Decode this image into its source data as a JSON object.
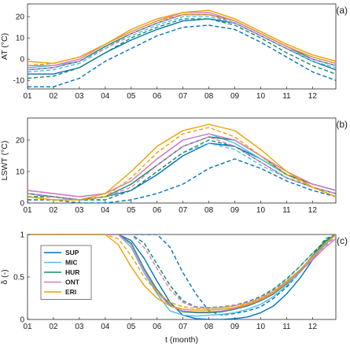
{
  "chart_data": [
    {
      "type": "line",
      "panel_tag": "(a)",
      "ylabel": "AT (°C)",
      "xlabel": "",
      "x_ticks": [
        "01",
        "02",
        "03",
        "04",
        "05",
        "06",
        "07",
        "08",
        "09",
        "10",
        "11",
        "12"
      ],
      "xlim": [
        1,
        12.9
      ],
      "ylim": [
        -14,
        26
      ],
      "y_ticks": [
        -10,
        0,
        10,
        20
      ],
      "grid": false,
      "x": [
        1,
        2,
        3,
        4,
        5,
        6,
        7,
        8,
        9,
        10,
        11,
        12,
        12.9
      ],
      "series": [
        {
          "name": "SUP",
          "style": "solid",
          "color": "#0072BD",
          "values": [
            -7,
            -7,
            -4,
            3,
            9,
            14,
            18,
            19,
            17,
            11,
            5,
            -1,
            -5
          ]
        },
        {
          "name": "SUP",
          "style": "dashed",
          "color": "#0072BD",
          "values": [
            -13,
            -13,
            -9,
            -1,
            5,
            11,
            15,
            16,
            14,
            8,
            1,
            -6,
            -10
          ]
        },
        {
          "name": "MIC",
          "style": "solid",
          "color": "#4DBEEE",
          "values": [
            -4,
            -3,
            -1,
            6,
            12,
            17,
            21,
            21,
            18,
            12,
            6,
            0,
            -3
          ]
        },
        {
          "name": "MIC",
          "style": "dashed",
          "color": "#4DBEEE",
          "values": [
            -6,
            -5,
            -2,
            5,
            11,
            16,
            20,
            20,
            17,
            11,
            5,
            -1,
            -4
          ]
        },
        {
          "name": "HUR",
          "style": "solid",
          "color": "#1B8E5A",
          "values": [
            -5,
            -4,
            -1,
            6,
            12,
            17,
            21,
            21,
            18,
            12,
            6,
            0,
            -3
          ]
        },
        {
          "name": "HUR",
          "style": "dashed",
          "color": "#1B8E5A",
          "values": [
            -9,
            -8,
            -4,
            3,
            10,
            15,
            19,
            19,
            16,
            10,
            3,
            -3,
            -7
          ]
        },
        {
          "name": "ONT",
          "style": "solid",
          "color": "#D97AC4",
          "values": [
            -3,
            -3,
            0,
            7,
            13,
            18,
            22,
            22,
            18,
            12,
            6,
            1,
            -2
          ]
        },
        {
          "name": "ONT",
          "style": "dashed",
          "color": "#D97AC4",
          "values": [
            -5,
            -4,
            -1,
            5,
            12,
            17,
            21,
            21,
            17,
            11,
            5,
            0,
            -3
          ]
        },
        {
          "name": "ERI",
          "style": "solid",
          "color": "#EDA000",
          "values": [
            -1,
            -2,
            1,
            7,
            14,
            19,
            22,
            23,
            19,
            13,
            7,
            2,
            -1
          ]
        },
        {
          "name": "ERI",
          "style": "dashed",
          "color": "#EDA000",
          "values": [
            -3,
            -2,
            1,
            7,
            13,
            18,
            21,
            21,
            18,
            12,
            6,
            1,
            -2
          ]
        }
      ]
    },
    {
      "type": "line",
      "panel_tag": "(b)",
      "ylabel": "LSWT (°C)",
      "xlabel": "",
      "x_ticks": [
        "01",
        "02",
        "03",
        "04",
        "05",
        "06",
        "07",
        "08",
        "09",
        "10",
        "11",
        "12"
      ],
      "xlim": [
        1,
        12.9
      ],
      "ylim": [
        0,
        27
      ],
      "y_ticks": [
        0,
        10,
        20
      ],
      "grid": false,
      "x": [
        1,
        2,
        3,
        4,
        5,
        6,
        7,
        8,
        9,
        10,
        11,
        12,
        12.9
      ],
      "series": [
        {
          "name": "SUP",
          "style": "solid",
          "color": "#0072BD",
          "values": [
            3,
            2,
            1,
            2,
            4,
            9,
            15,
            19,
            18,
            14,
            9,
            6,
            4
          ]
        },
        {
          "name": "SUP",
          "style": "dashed",
          "color": "#0072BD",
          "values": [
            1,
            1,
            0,
            0,
            1,
            3,
            6,
            11,
            14,
            11,
            7,
            4,
            2
          ]
        },
        {
          "name": "MIC",
          "style": "solid",
          "color": "#4DBEEE",
          "values": [
            4,
            3,
            2,
            3,
            7,
            14,
            20,
            22,
            19,
            14,
            9,
            6,
            4
          ]
        },
        {
          "name": "MIC",
          "style": "dashed",
          "color": "#4DBEEE",
          "values": [
            2,
            2,
            1,
            1,
            4,
            10,
            16,
            19,
            17,
            12,
            8,
            5,
            3
          ]
        },
        {
          "name": "HUR",
          "style": "solid",
          "color": "#1B8E5A",
          "values": [
            3,
            2,
            1,
            2,
            6,
            12,
            18,
            21,
            20,
            15,
            9,
            6,
            4
          ]
        },
        {
          "name": "HUR",
          "style": "dashed",
          "color": "#1B8E5A",
          "values": [
            2,
            2,
            1,
            1,
            4,
            10,
            16,
            20,
            18,
            13,
            8,
            5,
            3
          ]
        },
        {
          "name": "ONT",
          "style": "solid",
          "color": "#D97AC4",
          "values": [
            4,
            3,
            2,
            3,
            7,
            14,
            20,
            22,
            20,
            15,
            10,
            6,
            4
          ]
        },
        {
          "name": "ONT",
          "style": "dashed",
          "color": "#D97AC4",
          "values": [
            3,
            2,
            1,
            2,
            5,
            12,
            18,
            21,
            18,
            13,
            8,
            5,
            3
          ]
        },
        {
          "name": "ERI",
          "style": "solid",
          "color": "#EDA000",
          "values": [
            2,
            1,
            1,
            3,
            10,
            18,
            23,
            25,
            23,
            17,
            10,
            5,
            2
          ]
        },
        {
          "name": "ERI",
          "style": "dashed",
          "color": "#EDA000",
          "values": [
            2,
            1,
            1,
            2,
            8,
            16,
            22,
            24,
            21,
            15,
            9,
            5,
            2
          ]
        }
      ]
    },
    {
      "type": "line",
      "panel_tag": "(c)",
      "ylabel": "δ (-)",
      "xlabel": "t (month)",
      "x_ticks": [
        "01",
        "02",
        "03",
        "04",
        "05",
        "06",
        "07",
        "08",
        "09",
        "10",
        "11",
        "12"
      ],
      "xlim": [
        1,
        12.9
      ],
      "ylim": [
        0,
        1
      ],
      "y_ticks": [
        0,
        0.5,
        1
      ],
      "grid": false,
      "x": [
        1,
        2,
        3,
        4,
        4.5,
        5,
        5.5,
        6,
        6.5,
        7,
        7.5,
        8,
        8.5,
        9,
        9.5,
        10,
        10.5,
        11,
        11.5,
        12,
        12.5,
        12.9
      ],
      "legend": {
        "position": "left",
        "entries": [
          "SUP",
          "MIC",
          "HUR",
          "ONT",
          "ERI"
        ]
      },
      "series": [
        {
          "name": "SUP",
          "style": "solid",
          "color": "#0072BD",
          "values": [
            1,
            1,
            1,
            1,
            1,
            0.93,
            0.72,
            0.45,
            0.2,
            0.05,
            0.01,
            0.0,
            0.0,
            0.01,
            0.03,
            0.08,
            0.16,
            0.3,
            0.48,
            0.7,
            0.9,
            1
          ]
        },
        {
          "name": "SUP",
          "style": "dashed",
          "color": "#0072BD",
          "values": [
            1,
            1,
            1,
            1,
            1,
            1,
            1,
            1,
            0.85,
            0.55,
            0.3,
            0.1,
            0.05,
            0.07,
            0.1,
            0.15,
            0.25,
            0.38,
            0.55,
            0.75,
            0.95,
            1
          ]
        },
        {
          "name": "MIC",
          "style": "solid",
          "color": "#4DBEEE",
          "values": [
            1,
            1,
            1,
            1,
            1,
            0.85,
            0.55,
            0.3,
            0.1,
            0.05,
            0.04,
            0.05,
            0.06,
            0.08,
            0.12,
            0.18,
            0.27,
            0.4,
            0.55,
            0.72,
            0.88,
            1
          ]
        },
        {
          "name": "MIC",
          "style": "dashed",
          "color": "#4DBEEE",
          "values": [
            1,
            1,
            1,
            1,
            1,
            1,
            0.9,
            0.65,
            0.4,
            0.2,
            0.14,
            0.13,
            0.14,
            0.16,
            0.2,
            0.26,
            0.35,
            0.47,
            0.62,
            0.78,
            0.93,
            1
          ]
        },
        {
          "name": "HUR",
          "style": "solid",
          "color": "#1B8E5A",
          "values": [
            1,
            1,
            1,
            1,
            1,
            0.9,
            0.6,
            0.35,
            0.17,
            0.09,
            0.08,
            0.08,
            0.09,
            0.12,
            0.16,
            0.22,
            0.3,
            0.42,
            0.57,
            0.75,
            0.92,
            1
          ]
        },
        {
          "name": "HUR",
          "style": "dashed",
          "color": "#1B8E5A",
          "values": [
            1,
            1,
            1,
            1,
            1,
            1,
            0.9,
            0.65,
            0.4,
            0.22,
            0.15,
            0.14,
            0.15,
            0.17,
            0.21,
            0.27,
            0.36,
            0.48,
            0.62,
            0.78,
            0.93,
            1
          ]
        },
        {
          "name": "ONT",
          "style": "solid",
          "color": "#D97AC4",
          "values": [
            1,
            1,
            1,
            1,
            1,
            0.88,
            0.58,
            0.32,
            0.16,
            0.1,
            0.09,
            0.09,
            0.1,
            0.13,
            0.17,
            0.23,
            0.31,
            0.43,
            0.56,
            0.7,
            0.85,
            0.95
          ]
        },
        {
          "name": "ONT",
          "style": "dashed",
          "color": "#D97AC4",
          "values": [
            1,
            1,
            1,
            1,
            1,
            1,
            0.85,
            0.6,
            0.35,
            0.2,
            0.15,
            0.14,
            0.15,
            0.17,
            0.2,
            0.26,
            0.34,
            0.45,
            0.58,
            0.72,
            0.87,
            0.97
          ]
        },
        {
          "name": "ERI",
          "style": "solid",
          "color": "#EDA000",
          "values": [
            1,
            1,
            1,
            1,
            0.88,
            0.62,
            0.4,
            0.25,
            0.16,
            0.12,
            0.11,
            0.11,
            0.12,
            0.14,
            0.18,
            0.24,
            0.32,
            0.44,
            0.58,
            0.74,
            0.9,
            1
          ]
        },
        {
          "name": "ERI",
          "style": "dashed",
          "color": "#EDA000",
          "values": [
            1,
            1,
            1,
            1,
            0.95,
            0.75,
            0.5,
            0.32,
            0.2,
            0.15,
            0.13,
            0.13,
            0.14,
            0.16,
            0.19,
            0.25,
            0.33,
            0.45,
            0.58,
            0.74,
            0.9,
            1
          ]
        }
      ]
    }
  ]
}
